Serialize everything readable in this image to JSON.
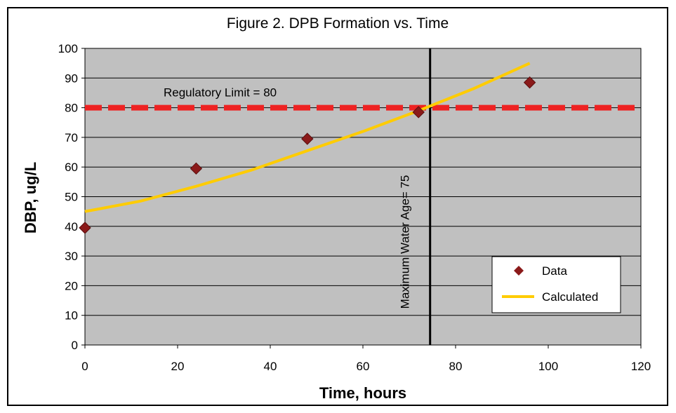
{
  "chart_data": {
    "type": "scatter",
    "title": "Figure 2.  DPB Formation vs. Time",
    "xlabel": "Time, hours",
    "ylabel": "DBP, ug/L",
    "xlim": [
      0,
      120
    ],
    "ylim": [
      0,
      100
    ],
    "x_ticks": [
      0,
      20,
      40,
      60,
      80,
      100,
      120
    ],
    "y_ticks": [
      0,
      10,
      20,
      30,
      40,
      50,
      60,
      70,
      80,
      90,
      100
    ],
    "grid": "horizontal",
    "legend_position": "bottom-right",
    "series": [
      {
        "name": "Data",
        "type": "scatter",
        "color": "#8b1a1a",
        "x": [
          0,
          24,
          48,
          72,
          96
        ],
        "y": [
          39.5,
          59.5,
          69.5,
          78.5,
          88.5
        ]
      },
      {
        "name": "Calculated",
        "type": "line",
        "color": "#ffcc00",
        "x": [
          0,
          12,
          24,
          36,
          48,
          60,
          72,
          84,
          96
        ],
        "y": [
          45,
          48.5,
          53.5,
          59,
          65.5,
          72,
          79,
          86.5,
          95
        ]
      }
    ],
    "reference_lines": [
      {
        "orientation": "horizontal",
        "value": 80,
        "label": "Regulatory Limit = 80",
        "color": "#ee2222",
        "style": "dashed"
      },
      {
        "orientation": "vertical",
        "value": 74.5,
        "label": "Maximum Water Age= 75",
        "color": "#000000",
        "style": "solid"
      }
    ],
    "plot_background": "#c0c0c0"
  }
}
